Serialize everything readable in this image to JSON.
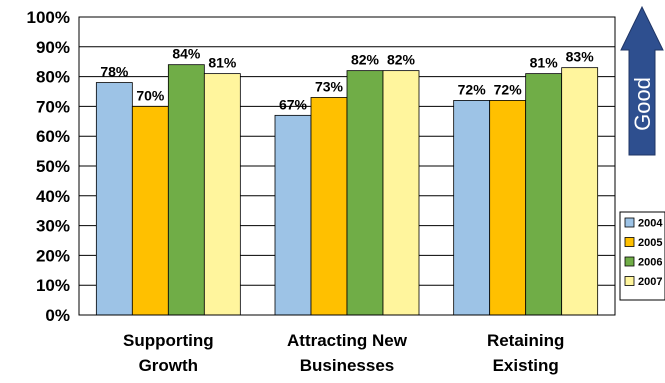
{
  "chart_data": {
    "type": "bar",
    "categories": [
      [
        "Supporting",
        "Growth"
      ],
      [
        "Attracting New",
        "Businesses"
      ],
      [
        "Retaining",
        "Existing"
      ]
    ],
    "series": [
      {
        "name": "2004",
        "color": "#9dc3e6",
        "values": [
          78,
          67,
          72
        ],
        "labels": [
          "78%",
          "67%",
          "72%"
        ]
      },
      {
        "name": "2005",
        "color": "#ffc000",
        "values": [
          70,
          73,
          72
        ],
        "labels": [
          "70%",
          "73%",
          "72%"
        ]
      },
      {
        "name": "2006",
        "color": "#70ad47",
        "values": [
          84,
          82,
          81
        ],
        "labels": [
          "84%",
          "82%",
          "81%"
        ]
      },
      {
        "name": "2007",
        "color": "#fff59d",
        "values": [
          81,
          82,
          83
        ],
        "labels": [
          "81%",
          "82%",
          "83%"
        ]
      }
    ],
    "ylim": [
      0,
      100
    ],
    "ytick_labels": [
      "0%",
      "10%",
      "20%",
      "30%",
      "40%",
      "50%",
      "60%",
      "70%",
      "80%",
      "90%",
      "100%"
    ],
    "grid": true,
    "legend_position": "right",
    "title": "",
    "xlabel": "",
    "ylabel": ""
  },
  "indicator": {
    "label": "Good",
    "color": "#2e4f8f",
    "icon": "up-arrow-icon"
  }
}
